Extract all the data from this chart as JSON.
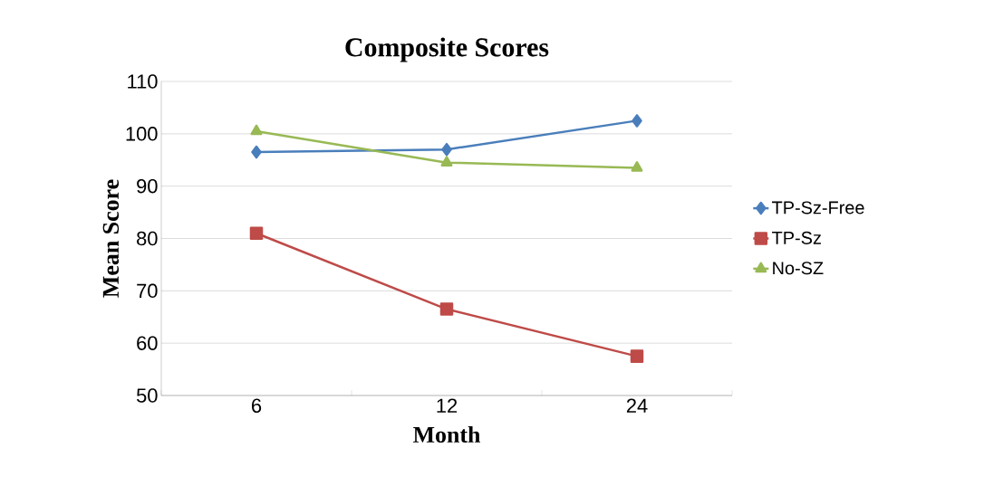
{
  "chart_data": {
    "type": "line",
    "title": "Composite Scores",
    "xlabel": "Month",
    "ylabel": "Mean Score",
    "categories": [
      "6",
      "12",
      "24"
    ],
    "series": [
      {
        "name": "TP-Sz-Free",
        "color": "#4a7ebb",
        "marker": "diamond",
        "values": [
          96.5,
          97,
          102.5
        ]
      },
      {
        "name": "TP-Sz",
        "color": "#be4b48",
        "marker": "square",
        "values": [
          81,
          66.5,
          57.5
        ]
      },
      {
        "name": "No-SZ",
        "color": "#98b954",
        "marker": "triangle",
        "values": [
          100.5,
          94.5,
          93.5
        ]
      }
    ],
    "ylim": [
      50,
      110
    ],
    "yticks": [
      50,
      60,
      70,
      80,
      90,
      100,
      110
    ],
    "grid": "y",
    "legend": "right",
    "line_style": "solid"
  }
}
